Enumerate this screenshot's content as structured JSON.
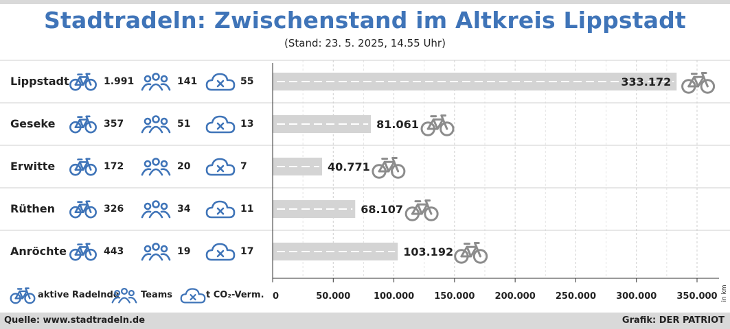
{
  "title": "Stadtradeln: Zwischenstand im Altkreis Lippstadt",
  "subtitle": "(Stand: 23. 5. 2025, 14.55 Uhr)",
  "rows": [
    {
      "name": "Lippstadt",
      "riders": "1.991",
      "teams": "141",
      "co2": "55"
    },
    {
      "name": "Geseke",
      "riders": "357",
      "teams": "51",
      "co2": "13"
    },
    {
      "name": "Erwitte",
      "riders": "172",
      "teams": "20",
      "co2": "7"
    },
    {
      "name": "Rüthen",
      "riders": "326",
      "teams": "34",
      "co2": "11"
    },
    {
      "name": "Anröchte",
      "riders": "443",
      "teams": "19",
      "co2": "17"
    }
  ],
  "legend": {
    "riders": "aktive Radelnde",
    "teams": "Teams",
    "co2": "t CO₂-Verm."
  },
  "footer": {
    "source": "Quelle: www.stadtradeln.de",
    "credit": "Grafik: DER PATRIOT"
  },
  "colors": {
    "title": "#3f74b8",
    "icon_blue": "#3f74b8",
    "icon_gray": "#8c8c8c",
    "bar": "#d4d4d4",
    "grid": "#cfcfcf"
  },
  "icons": {
    "riders": "bicycle-icon",
    "teams": "group-icon",
    "co2": "cloud-x-icon",
    "bar_end": "bicycle-icon"
  },
  "chart_data": {
    "type": "bar",
    "orientation": "horizontal",
    "categories": [
      "Lippstadt",
      "Geseke",
      "Erwitte",
      "Rüthen",
      "Anröchte"
    ],
    "values": [
      333172,
      81061,
      40771,
      68107,
      103192
    ],
    "value_labels": [
      "333.172",
      "81.061",
      "40.771",
      "68.107",
      "103.192"
    ],
    "xlim": [
      0,
      370000
    ],
    "xticks": [
      0,
      50000,
      100000,
      150000,
      200000,
      250000,
      300000,
      350000
    ],
    "xtick_labels": [
      "0",
      "50.000",
      "100.000",
      "150.000",
      "200.000",
      "250.000",
      "300.000",
      "350.000"
    ],
    "xlabel": "in km",
    "grid": true
  }
}
